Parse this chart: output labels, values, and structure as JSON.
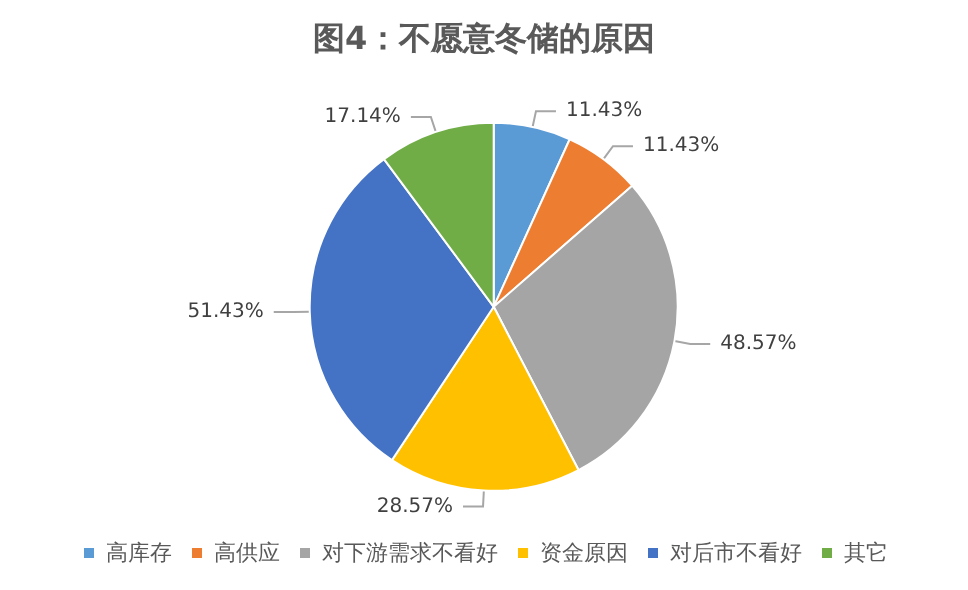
{
  "chart_data": {
    "type": "pie",
    "title": "图4：不愿意冬储的原因",
    "categories": [
      "高库存",
      "高供应",
      "对下游需求不看好",
      "资金原因",
      "对后市不看好",
      "其它"
    ],
    "values": [
      11.43,
      11.43,
      48.57,
      28.57,
      51.43,
      17.14
    ],
    "colors": [
      "#5b9bd5",
      "#ed7d31",
      "#a5a5a5",
      "#ffc000",
      "#4472c4",
      "#70ad47"
    ],
    "value_labels": [
      "11.43%",
      "11.43%",
      "48.57%",
      "28.57%",
      "51.43%",
      "17.14%"
    ],
    "legend": "bottom"
  }
}
